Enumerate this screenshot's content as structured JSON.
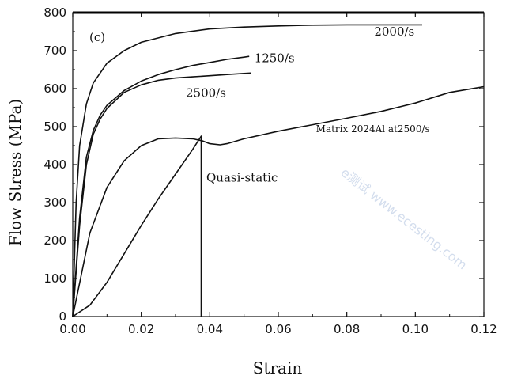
{
  "chart_data": {
    "type": "line",
    "panel_label": "(c)",
    "xlabel": "Strain",
    "ylabel": "Flow Stress (MPa)",
    "xlim": [
      0,
      0.12
    ],
    "ylim": [
      0,
      800
    ],
    "xticks": [
      "0.00",
      "0.02",
      "0.04",
      "0.06",
      "0.08",
      "0.10",
      "0.12"
    ],
    "yticks": [
      "0",
      "100",
      "200",
      "300",
      "400",
      "500",
      "600",
      "700",
      "800"
    ],
    "grid": false,
    "watermark_text": "e测试 www.ecesting.com",
    "series": [
      {
        "name": "2000/s",
        "x": [
          0,
          0.001,
          0.002,
          0.004,
          0.006,
          0.01,
          0.015,
          0.02,
          0.03,
          0.04,
          0.05,
          0.06,
          0.07,
          0.08,
          0.09,
          0.1,
          0.102
        ],
        "y": [
          0,
          300,
          450,
          560,
          615,
          667,
          700,
          722,
          745,
          757,
          762,
          765,
          767,
          768,
          768,
          768,
          768
        ]
      },
      {
        "name": "1250/s",
        "x": [
          0,
          0.002,
          0.004,
          0.006,
          0.008,
          0.01,
          0.015,
          0.02,
          0.025,
          0.03,
          0.035,
          0.04,
          0.045,
          0.05,
          0.0515
        ],
        "y": [
          0,
          260,
          420,
          490,
          530,
          556,
          595,
          620,
          637,
          650,
          661,
          669,
          677,
          683,
          685
        ]
      },
      {
        "name": "2500/s",
        "x": [
          0,
          0.002,
          0.004,
          0.006,
          0.008,
          0.01,
          0.015,
          0.02,
          0.025,
          0.03,
          0.035,
          0.04,
          0.045,
          0.05,
          0.052
        ],
        "y": [
          0,
          240,
          400,
          480,
          520,
          548,
          590,
          610,
          622,
          628,
          631,
          634,
          637,
          640,
          641
        ]
      },
      {
        "name": "Matrix 2024Al at2500/s",
        "x": [
          0,
          0.005,
          0.01,
          0.015,
          0.02,
          0.025,
          0.03,
          0.035,
          0.038,
          0.04,
          0.043,
          0.045,
          0.05,
          0.06,
          0.07,
          0.08,
          0.09,
          0.1,
          0.11,
          0.12
        ],
        "y": [
          0,
          220,
          340,
          410,
          450,
          468,
          470,
          468,
          462,
          455,
          452,
          455,
          468,
          488,
          505,
          522,
          540,
          562,
          590,
          605
        ]
      },
      {
        "name": "Quasi-static",
        "x": [
          0,
          0.005,
          0.01,
          0.015,
          0.02,
          0.025,
          0.03,
          0.035,
          0.0375,
          0.0375
        ],
        "y": [
          0,
          30,
          90,
          165,
          240,
          310,
          375,
          440,
          475,
          0
        ]
      }
    ],
    "annotations": [
      {
        "text": "2000/s",
        "x": 0.088,
        "y": 740,
        "size": "large"
      },
      {
        "text": "1250/s",
        "x": 0.053,
        "y": 670,
        "size": "large"
      },
      {
        "text": "2500/s",
        "x": 0.033,
        "y": 578,
        "size": "large"
      },
      {
        "text": "Matrix 2024Al at2500/s",
        "x": 0.071,
        "y": 485,
        "size": "small"
      },
      {
        "text": "Quasi-static",
        "x": 0.039,
        "y": 355,
        "size": "large"
      }
    ]
  }
}
